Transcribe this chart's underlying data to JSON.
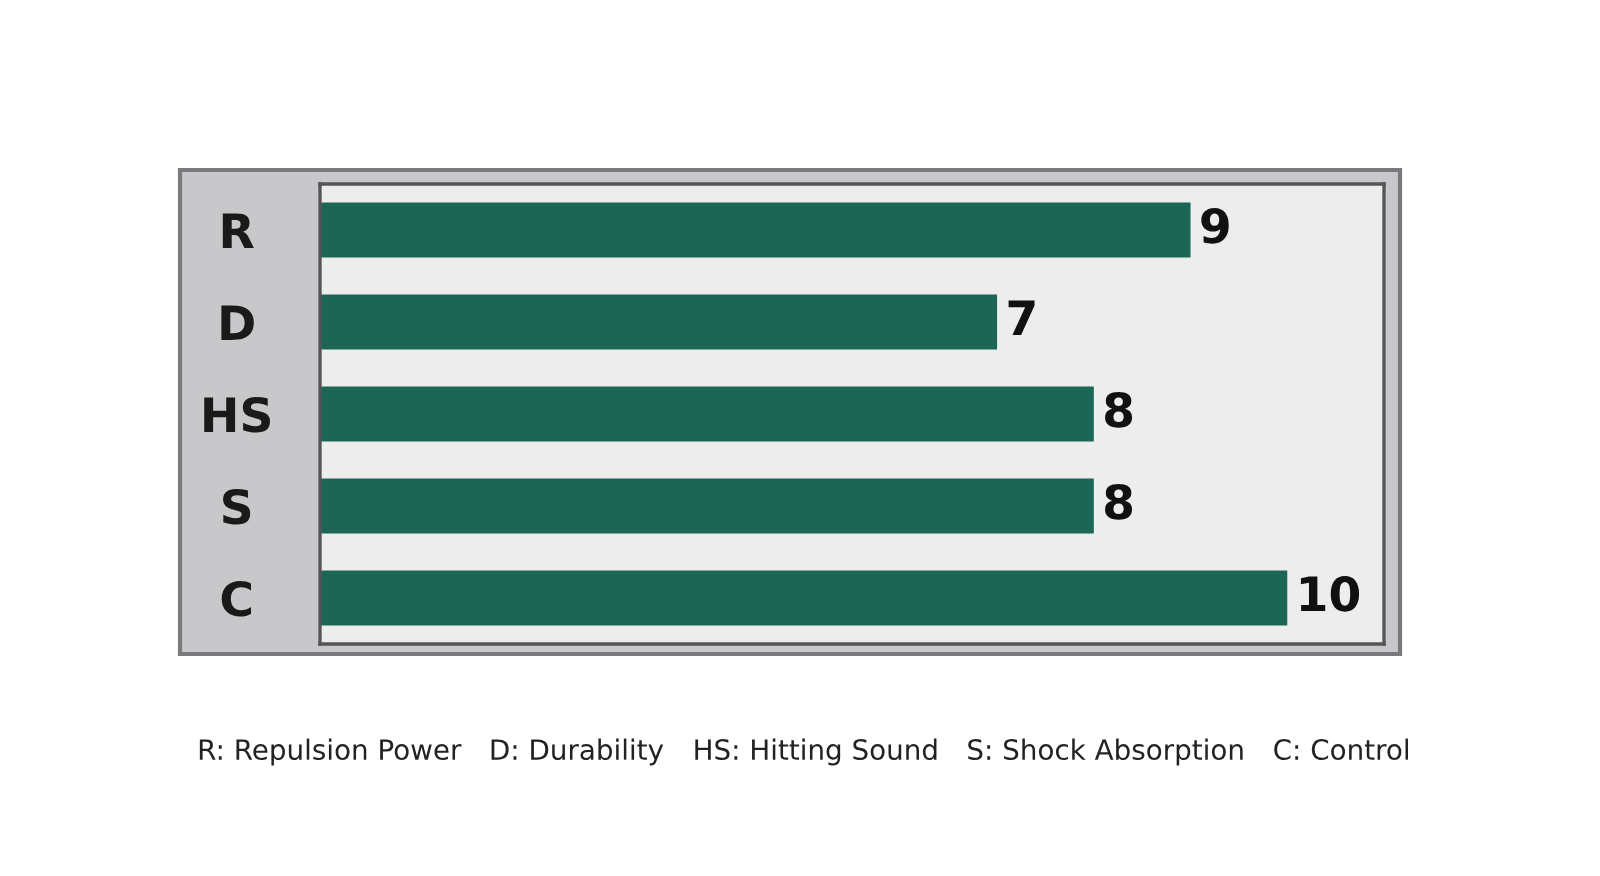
{
  "chart_data": {
    "type": "bar",
    "orientation": "horizontal",
    "categories": [
      "R",
      "D",
      "HS",
      "S",
      "C"
    ],
    "values": [
      9,
      7,
      8,
      8,
      10
    ],
    "color": "#1d6656",
    "xlim": [
      0,
      11
    ],
    "tick_labels": "y",
    "data_labels": true,
    "annotations": [
      "R: Repulsion Power",
      "D: Durability",
      "HS: Hitting Sound",
      "S: Shock Absorption",
      "C: Control"
    ]
  }
}
